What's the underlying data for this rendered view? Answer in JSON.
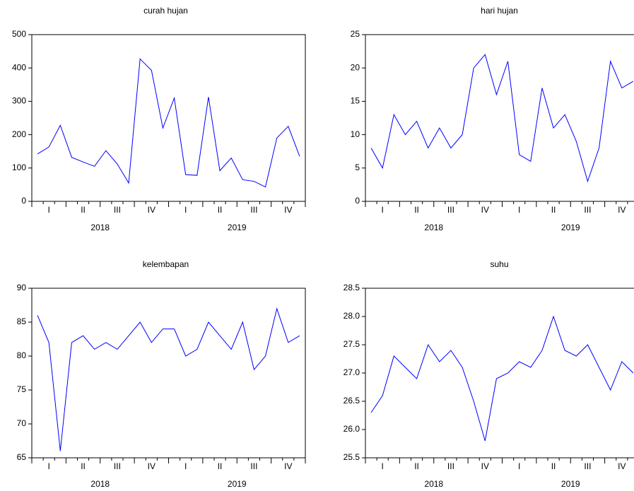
{
  "chart_data": [
    {
      "type": "line",
      "title": "curah hujan",
      "categories": [
        null,
        "I",
        null,
        null,
        "II",
        null,
        null,
        "III",
        null,
        null,
        "IV",
        null,
        null,
        "I",
        null,
        null,
        "II",
        null,
        null,
        "III",
        null,
        null,
        "IV",
        null
      ],
      "groups": [
        "2018",
        "2019"
      ],
      "values": [
        142,
        163,
        228,
        132,
        118,
        105,
        152,
        112,
        55,
        427,
        393,
        220,
        310,
        80,
        78,
        313,
        92,
        130,
        65,
        60,
        43,
        190,
        225,
        135
      ],
      "color": "#0000ff",
      "ylim": [
        0,
        500
      ],
      "yticks": [
        0,
        100,
        200,
        300,
        400,
        500
      ]
    },
    {
      "type": "line",
      "title": "hari hujan",
      "categories": [
        null,
        "I",
        null,
        null,
        "II",
        null,
        null,
        "III",
        null,
        null,
        "IV",
        null,
        null,
        "I",
        null,
        null,
        "II",
        null,
        null,
        "III",
        null,
        null,
        "IV",
        null
      ],
      "groups": [
        "2018",
        "2019"
      ],
      "values": [
        8,
        5,
        13,
        10,
        12,
        8,
        11,
        8,
        10,
        20,
        22,
        16,
        21,
        7,
        6,
        17,
        11,
        13,
        9,
        3,
        8,
        21,
        17,
        18
      ],
      "color": "#0000ff",
      "ylim": [
        0,
        25
      ],
      "yticks": [
        0,
        5,
        10,
        15,
        20,
        25
      ]
    },
    {
      "type": "line",
      "title": "kelembapan",
      "categories": [
        null,
        "I",
        null,
        null,
        "II",
        null,
        null,
        "III",
        null,
        null,
        "IV",
        null,
        null,
        "I",
        null,
        null,
        "II",
        null,
        null,
        "III",
        null,
        null,
        "IV",
        null
      ],
      "groups": [
        "2018",
        "2019"
      ],
      "values": [
        86,
        82,
        66,
        82,
        83,
        81,
        82,
        81,
        83,
        85,
        82,
        84,
        84,
        80,
        81,
        85,
        83,
        81,
        85,
        78,
        80,
        87,
        82,
        83
      ],
      "color": "#0000ff",
      "ylim": [
        65,
        90
      ],
      "yticks": [
        65,
        70,
        75,
        80,
        85,
        90
      ]
    },
    {
      "type": "line",
      "title": "suhu",
      "categories": [
        null,
        "I",
        null,
        null,
        "II",
        null,
        null,
        "III",
        null,
        null,
        "IV",
        null,
        null,
        "I",
        null,
        null,
        "II",
        null,
        null,
        "III",
        null,
        null,
        "IV",
        null
      ],
      "groups": [
        "2018",
        "2019"
      ],
      "values": [
        26.3,
        26.6,
        27.3,
        27.1,
        26.9,
        27.5,
        27.2,
        27.4,
        27.1,
        26.5,
        25.8,
        26.9,
        27.0,
        27.2,
        27.1,
        27.4,
        28.0,
        27.4,
        27.3,
        27.5,
        27.1,
        26.7,
        27.2,
        27.0
      ],
      "color": "#0000ff",
      "ylim": [
        25.5,
        28.5
      ],
      "yticks": [
        25.5,
        {
          "value": 26,
          "label": "26.0"
        },
        26.5,
        {
          "value": 27,
          "label": "27.0"
        },
        27.5,
        {
          "value": 28,
          "label": "28.0"
        },
        28.5
      ]
    }
  ]
}
